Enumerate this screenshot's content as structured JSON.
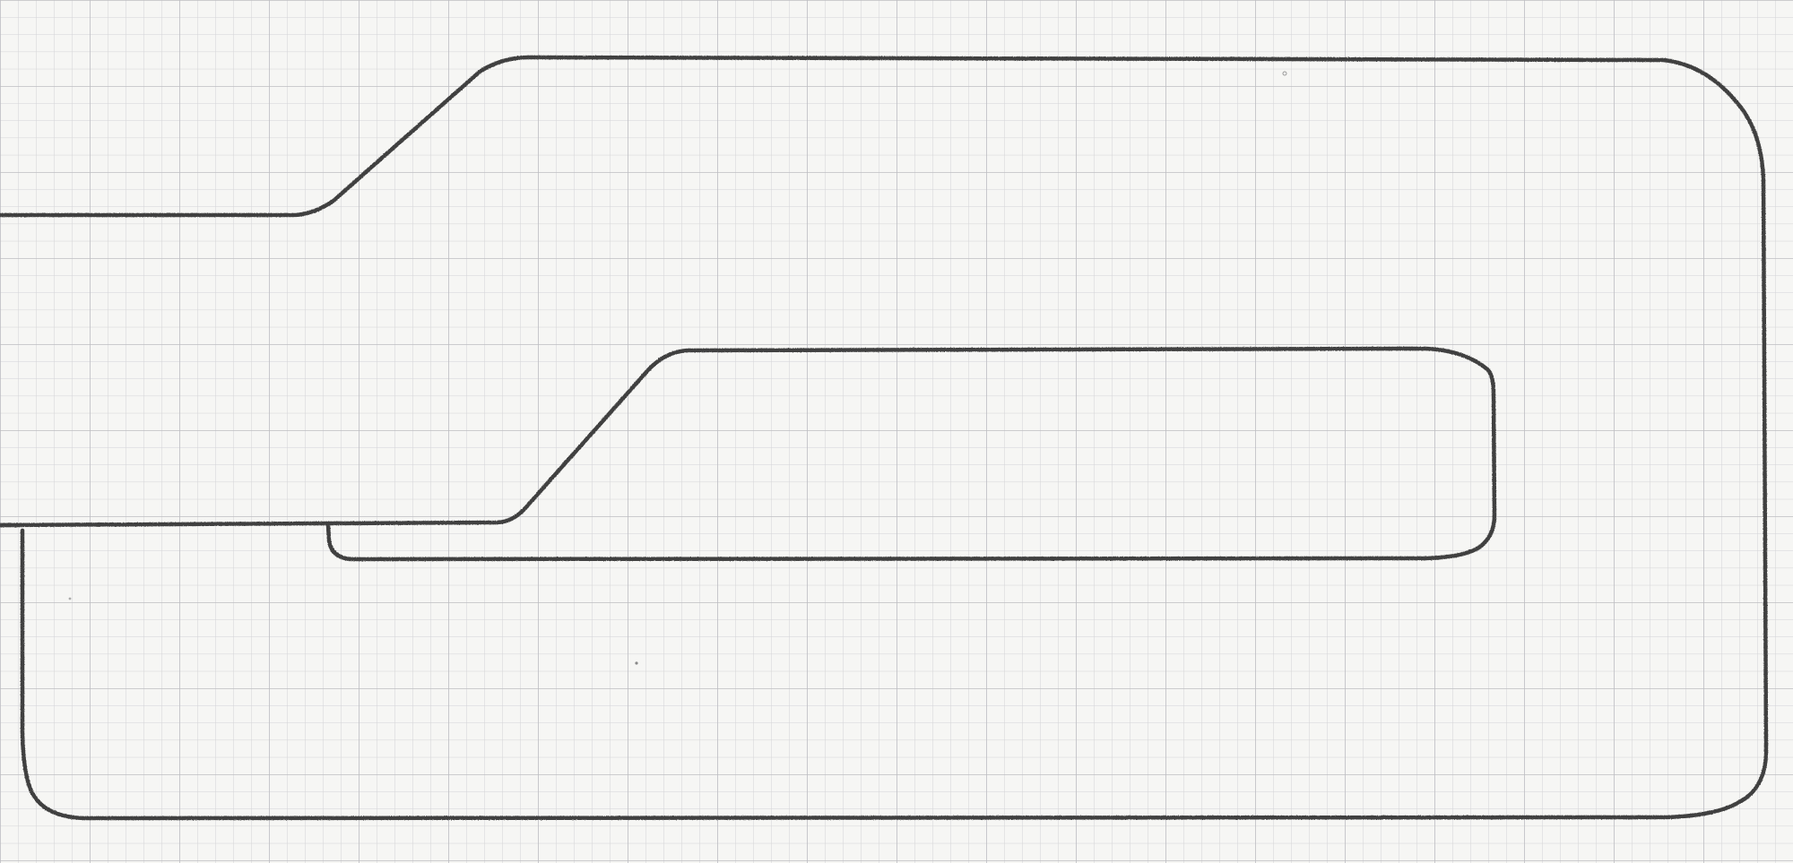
{
  "paper": {
    "background": "#f6f6f4",
    "grid_minor_color": "#d3d3d6",
    "grid_major_color": "#bdbdc2"
  },
  "drawing": {
    "stroke_color": "#3f3f3f",
    "description_visible_text": ""
  }
}
